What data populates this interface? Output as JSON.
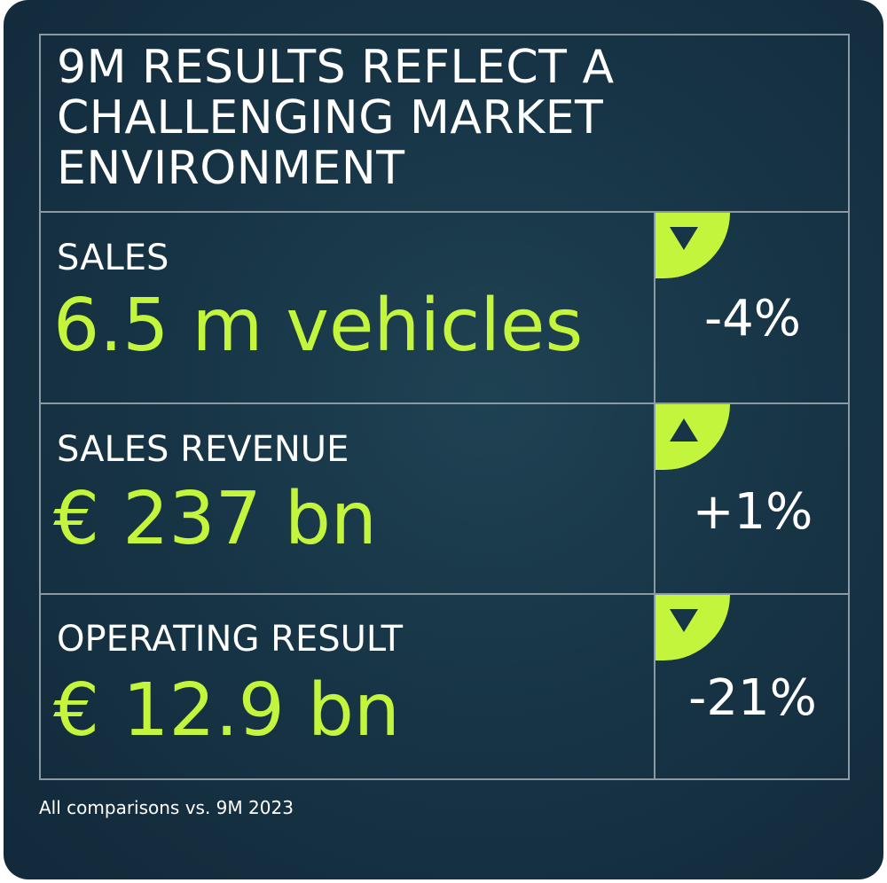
{
  "headline": {
    "line1": "9M RESULTS REFLECT A",
    "line2": "CHALLENGING MARKET",
    "line3": "ENVIRONMENT"
  },
  "metrics": [
    {
      "label": "SALES",
      "value": "6.5 m vehicles",
      "change": "-4%",
      "direction": "down"
    },
    {
      "label": "SALES REVENUE",
      "value": "€ 237 bn",
      "change": "+1%",
      "direction": "up"
    },
    {
      "label": "OPERATING RESULT",
      "value": "€ 12.9 bn",
      "change": "-21%",
      "direction": "down"
    }
  ],
  "footnote": "All comparisons vs. 9M 2023",
  "colors": {
    "background": "#173546",
    "accent": "#c3f53c",
    "text": "#ffffff",
    "rule": "#8a9aa4"
  },
  "icons": {
    "down": "triangle-down-icon",
    "up": "triangle-up-icon"
  }
}
